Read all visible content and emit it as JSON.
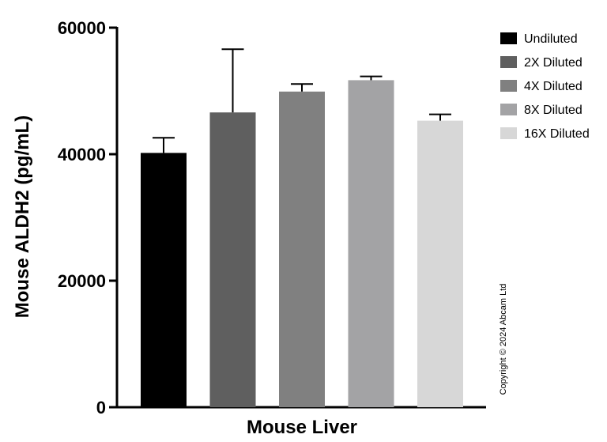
{
  "chart_data": {
    "type": "bar",
    "title": "",
    "xlabel": "Mouse Liver",
    "ylabel": "Mouse ALDH2 (pg/mL)",
    "ylim": [
      0,
      60000
    ],
    "yticks": [
      0,
      20000,
      40000,
      60000
    ],
    "ytick_labels": [
      "0",
      "20000",
      "40000",
      "60000"
    ],
    "legend_position": "top-right",
    "grid": false,
    "series": [
      {
        "name": "Undiluted",
        "value": 40200,
        "error": 2400,
        "color": "#000000"
      },
      {
        "name": "2X Diluted",
        "value": 46600,
        "error": 10000,
        "color": "#5f5f5f"
      },
      {
        "name": "4X Diluted",
        "value": 49900,
        "error": 1200,
        "color": "#808080"
      },
      {
        "name": "8X Diluted",
        "value": 51700,
        "error": 600,
        "color": "#a3a3a5"
      },
      {
        "name": "16X Diluted",
        "value": 45300,
        "error": 1000,
        "color": "#d7d7d7"
      }
    ]
  },
  "copyright": "Copyright © 2024 Abcam Ltd"
}
